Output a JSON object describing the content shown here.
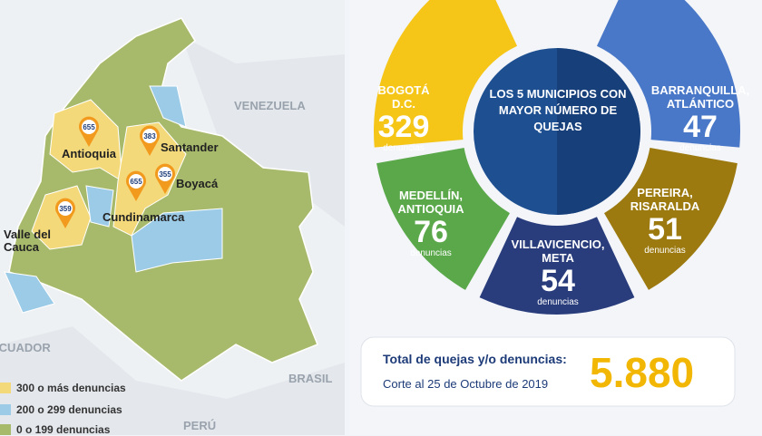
{
  "map": {
    "countries": [
      "VENEZUELA",
      "BRASIL",
      "ECUADOR",
      "PERÚ"
    ],
    "regions": [
      {
        "name": "Antioquia",
        "pin": 655
      },
      {
        "name": "Santander",
        "pin": 383
      },
      {
        "name": "Boyacá",
        "pin": 355
      },
      {
        "name": "Cundinamarca",
        "pin": 655
      },
      {
        "name": "Valle del Cauca",
        "pin": 359
      }
    ],
    "legend": [
      "300 o más denuncias",
      "200 o 299 denuncias",
      "0 o 199 denuncias"
    ]
  },
  "summary": {
    "title": "LOS 5 MUNICIPIOS CON MAYOR NÚMERO DE QUEJAS",
    "municipalities": [
      {
        "name": "BOGOTÁ D.C.",
        "count": 329,
        "unit": "denuncias"
      },
      {
        "name": "BARRANQUILLA, ATLÁNTICO",
        "count": 47,
        "unit": "denuncias"
      },
      {
        "name": "PEREIRA, RISARALDA",
        "count": 51,
        "unit": "denuncias"
      },
      {
        "name": "VILLAVICENCIO, META",
        "count": 54,
        "unit": "denuncias"
      },
      {
        "name": "MEDELLÍN, ANTIOQUIA",
        "count": 76,
        "unit": "denuncias"
      }
    ],
    "total": {
      "label": "Total de quejas y/o denuncias:",
      "date": "Corte al 25 de Octubre de 2019",
      "value": "5.880"
    }
  }
}
